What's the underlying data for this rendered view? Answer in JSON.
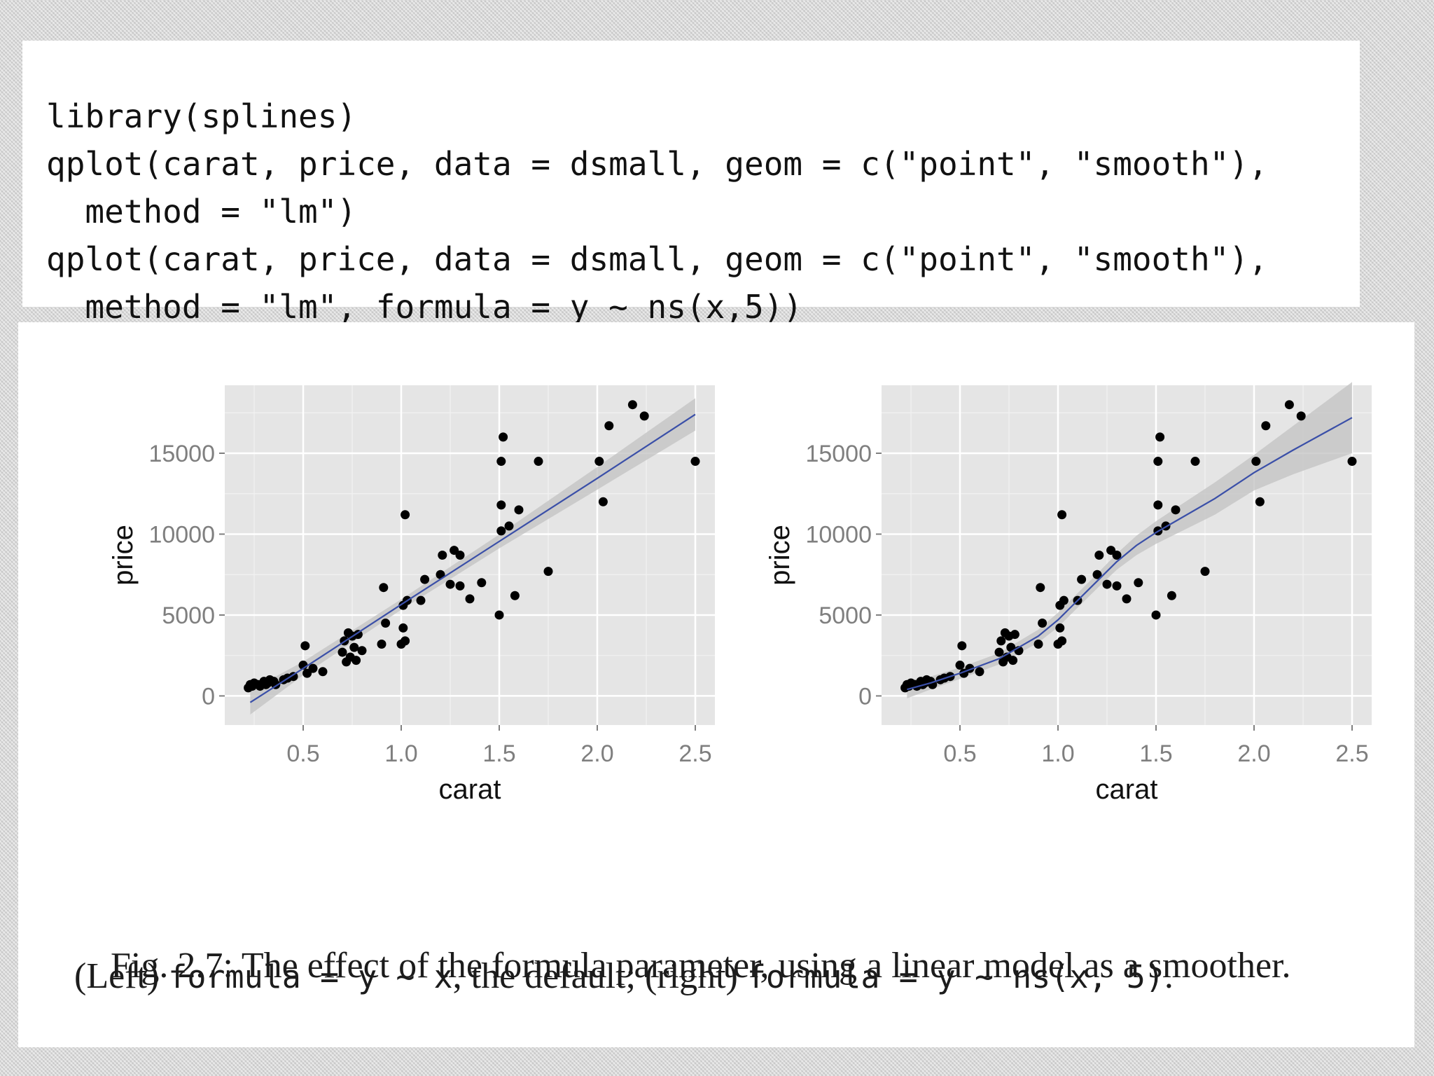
{
  "code": {
    "lines": [
      "library(splines)",
      "qplot(carat, price, data = dsmall, geom = c(\"point\", \"smooth\"),",
      "  method = \"lm\")",
      "qplot(carat, price, data = dsmall, geom = c(\"point\", \"smooth\"),",
      "  method = \"lm\", formula = y ~ ns(x,5))"
    ]
  },
  "caption": {
    "line1": "Fig. 2.7: The effect of the formula parameter, using a linear model as a smoother.",
    "l2_a": "(Left) ",
    "l2_b": "formula = y ~ x",
    "l2_c": ", the default; (right) ",
    "l2_d": "formula = y ~ ns(x, 5)",
    "l2_e": "."
  },
  "colors": {
    "panel_bg": "#e5e5e5",
    "grid": "#ffffff",
    "points": "#000000",
    "smooth_line": "#3a4fa8",
    "ribbon": "#c2c2c2"
  },
  "chart_data": [
    {
      "type": "scatter",
      "xlabel": "carat",
      "ylabel": "price",
      "xlim": [
        0.1,
        2.6
      ],
      "ylim": [
        -1800,
        19200
      ],
      "xticks": [
        0.5,
        1.0,
        1.5,
        2.0,
        2.5
      ],
      "xtick_labels": [
        "0.5",
        "1.0",
        "1.5",
        "2.0",
        "2.5"
      ],
      "yticks": [
        0,
        5000,
        10000,
        15000
      ],
      "ytick_labels": [
        "0",
        "5000",
        "10000",
        "15000"
      ],
      "grid": true,
      "smooth": {
        "method": "lm",
        "x": [
          0.23,
          0.5,
          1.0,
          1.5,
          2.0,
          2.5
        ],
        "y": [
          -400,
          1700,
          5650,
          9550,
          13450,
          17400
        ],
        "ci_halfwidth": [
          750,
          420,
          320,
          430,
          700,
          1000
        ]
      },
      "points": [
        [
          0.22,
          500
        ],
        [
          0.23,
          700
        ],
        [
          0.24,
          600
        ],
        [
          0.25,
          800
        ],
        [
          0.27,
          700
        ],
        [
          0.28,
          600
        ],
        [
          0.3,
          900
        ],
        [
          0.31,
          700
        ],
        [
          0.32,
          800
        ],
        [
          0.33,
          1000
        ],
        [
          0.35,
          900
        ],
        [
          0.36,
          700
        ],
        [
          0.4,
          1000
        ],
        [
          0.42,
          1100
        ],
        [
          0.45,
          1200
        ],
        [
          0.5,
          1900
        ],
        [
          0.51,
          3100
        ],
        [
          0.52,
          1400
        ],
        [
          0.55,
          1700
        ],
        [
          0.6,
          1500
        ],
        [
          0.7,
          2700
        ],
        [
          0.71,
          3400
        ],
        [
          0.72,
          2100
        ],
        [
          0.73,
          3900
        ],
        [
          0.74,
          2400
        ],
        [
          0.75,
          3700
        ],
        [
          0.76,
          3000
        ],
        [
          0.77,
          2200
        ],
        [
          0.78,
          3800
        ],
        [
          0.8,
          2800
        ],
        [
          0.9,
          3200
        ],
        [
          0.91,
          6700
        ],
        [
          0.92,
          4500
        ],
        [
          1.0,
          3200
        ],
        [
          1.01,
          4200
        ],
        [
          1.02,
          3400
        ],
        [
          1.01,
          5600
        ],
        [
          1.03,
          5900
        ],
        [
          1.02,
          11200
        ],
        [
          1.1,
          5900
        ],
        [
          1.12,
          7200
        ],
        [
          1.2,
          7500
        ],
        [
          1.21,
          8700
        ],
        [
          1.25,
          6900
        ],
        [
          1.27,
          9000
        ],
        [
          1.3,
          8700
        ],
        [
          1.3,
          6800
        ],
        [
          1.35,
          6000
        ],
        [
          1.41,
          7000
        ],
        [
          1.5,
          5000
        ],
        [
          1.51,
          10200
        ],
        [
          1.51,
          11800
        ],
        [
          1.51,
          14500
        ],
        [
          1.52,
          16000
        ],
        [
          1.55,
          10500
        ],
        [
          1.58,
          6200
        ],
        [
          1.6,
          11500
        ],
        [
          1.7,
          14500
        ],
        [
          1.75,
          7700
        ],
        [
          2.01,
          14500
        ],
        [
          2.03,
          12000
        ],
        [
          2.06,
          16700
        ],
        [
          2.18,
          18000
        ],
        [
          2.24,
          17300
        ],
        [
          2.5,
          14500
        ]
      ]
    },
    {
      "type": "scatter",
      "xlabel": "carat",
      "ylabel": "price",
      "xlim": [
        0.1,
        2.6
      ],
      "ylim": [
        -1800,
        19200
      ],
      "xticks": [
        0.5,
        1.0,
        1.5,
        2.0,
        2.5
      ],
      "xtick_labels": [
        "0.5",
        "1.0",
        "1.5",
        "2.0",
        "2.5"
      ],
      "yticks": [
        0,
        5000,
        10000,
        15000
      ],
      "ytick_labels": [
        "0",
        "5000",
        "10000",
        "15000"
      ],
      "grid": true,
      "smooth": {
        "method": "lm",
        "formula": "y ~ ns(x,5)",
        "x": [
          0.23,
          0.35,
          0.5,
          0.7,
          0.9,
          1.0,
          1.1,
          1.2,
          1.3,
          1.4,
          1.5,
          1.6,
          1.8,
          2.0,
          2.2,
          2.5
        ],
        "y": [
          400,
          800,
          1400,
          2300,
          3700,
          4700,
          5900,
          7100,
          8300,
          9300,
          10100,
          10800,
          12200,
          13800,
          15200,
          17200
        ],
        "ci_halfwidth": [
          550,
          400,
          350,
          350,
          400,
          450,
          450,
          450,
          500,
          600,
          700,
          800,
          1000,
          1100,
          1500,
          2200
        ]
      },
      "points": [
        [
          0.22,
          500
        ],
        [
          0.23,
          700
        ],
        [
          0.24,
          600
        ],
        [
          0.25,
          800
        ],
        [
          0.27,
          700
        ],
        [
          0.28,
          600
        ],
        [
          0.3,
          900
        ],
        [
          0.31,
          700
        ],
        [
          0.32,
          800
        ],
        [
          0.33,
          1000
        ],
        [
          0.35,
          900
        ],
        [
          0.36,
          700
        ],
        [
          0.4,
          1000
        ],
        [
          0.42,
          1100
        ],
        [
          0.45,
          1200
        ],
        [
          0.5,
          1900
        ],
        [
          0.51,
          3100
        ],
        [
          0.52,
          1400
        ],
        [
          0.55,
          1700
        ],
        [
          0.6,
          1500
        ],
        [
          0.7,
          2700
        ],
        [
          0.71,
          3400
        ],
        [
          0.72,
          2100
        ],
        [
          0.73,
          3900
        ],
        [
          0.74,
          2400
        ],
        [
          0.75,
          3700
        ],
        [
          0.76,
          3000
        ],
        [
          0.77,
          2200
        ],
        [
          0.78,
          3800
        ],
        [
          0.8,
          2800
        ],
        [
          0.9,
          3200
        ],
        [
          0.91,
          6700
        ],
        [
          0.92,
          4500
        ],
        [
          1.0,
          3200
        ],
        [
          1.01,
          4200
        ],
        [
          1.02,
          3400
        ],
        [
          1.01,
          5600
        ],
        [
          1.03,
          5900
        ],
        [
          1.02,
          11200
        ],
        [
          1.1,
          5900
        ],
        [
          1.12,
          7200
        ],
        [
          1.2,
          7500
        ],
        [
          1.21,
          8700
        ],
        [
          1.25,
          6900
        ],
        [
          1.27,
          9000
        ],
        [
          1.3,
          8700
        ],
        [
          1.3,
          6800
        ],
        [
          1.35,
          6000
        ],
        [
          1.41,
          7000
        ],
        [
          1.5,
          5000
        ],
        [
          1.51,
          10200
        ],
        [
          1.51,
          11800
        ],
        [
          1.51,
          14500
        ],
        [
          1.52,
          16000
        ],
        [
          1.55,
          10500
        ],
        [
          1.58,
          6200
        ],
        [
          1.6,
          11500
        ],
        [
          1.7,
          14500
        ],
        [
          1.75,
          7700
        ],
        [
          2.01,
          14500
        ],
        [
          2.03,
          12000
        ],
        [
          2.06,
          16700
        ],
        [
          2.18,
          18000
        ],
        [
          2.24,
          17300
        ],
        [
          2.5,
          14500
        ]
      ]
    }
  ]
}
